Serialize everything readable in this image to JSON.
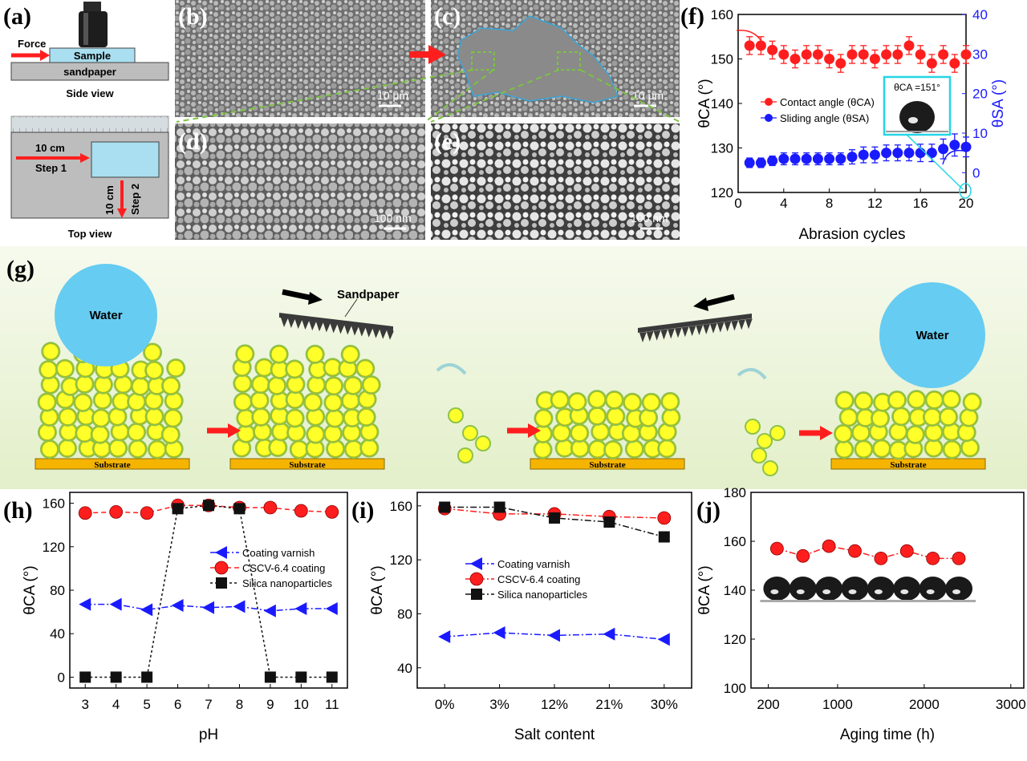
{
  "panels": {
    "a": {
      "label": "(a)",
      "force": "Force",
      "sample": "Sample",
      "sandpaper": "sandpaper",
      "side_view": "Side view",
      "dist1": "10 cm",
      "step1": "Step 1",
      "dist2": "10 cm",
      "step2": "Step 2",
      "top_view": "Top view"
    },
    "b": {
      "label": "(b)",
      "scale": "10 μm"
    },
    "c": {
      "label": "(c)",
      "scale": "10 μm"
    },
    "d": {
      "label": "(d)",
      "scale": "100 nm"
    },
    "e": {
      "label": "(e)",
      "scale": "100 nm"
    },
    "f": {
      "label": "(f)",
      "inset": "θCA =151°"
    },
    "g": {
      "label": "(g)",
      "water": "Water",
      "sandpaper": "Sandpaper",
      "substrate": "Substrate"
    },
    "h": {
      "label": "(h)"
    },
    "i": {
      "label": "(i)"
    },
    "j": {
      "label": "(j)"
    }
  },
  "colors": {
    "red": "#ff1e1e",
    "blue": "#1a1aff",
    "black": "#111111",
    "water": "#66ccf2",
    "particle": "#ffff2a",
    "binder": "#8fc24a",
    "substrate": "#f5b400",
    "bg_g": "#eef6dc"
  },
  "chart_data": [
    {
      "id": "f",
      "type": "scatter",
      "xlabel": "Abrasion cycles",
      "ylabel": "θCA (°)",
      "ylabel_right": "θSA (°)",
      "xlim": [
        0,
        20
      ],
      "ylim": [
        120,
        160
      ],
      "ylim_right": [
        -5,
        40
      ],
      "xticks": [
        0,
        4,
        8,
        12,
        16,
        20
      ],
      "yticks": [
        120,
        130,
        140,
        150,
        160
      ],
      "yticks_right": [
        0,
        10,
        20,
        30,
        40
      ],
      "x": [
        1,
        2,
        3,
        4,
        5,
        6,
        7,
        8,
        9,
        10,
        11,
        12,
        13,
        14,
        15,
        16,
        17,
        18,
        19,
        20
      ],
      "series": [
        {
          "name": "Contact angle (θCA)",
          "axis": "left",
          "color": "#ff1e1e",
          "values": [
            153,
            153,
            152,
            151,
            150,
            151,
            151,
            150,
            149,
            151,
            151,
            150,
            151,
            151,
            153,
            151,
            149,
            151,
            149,
            151
          ],
          "errors": [
            2,
            2,
            2,
            2,
            2,
            2,
            2,
            2,
            2,
            2,
            2,
            2,
            2,
            2,
            2,
            2,
            2,
            2,
            2,
            2
          ]
        },
        {
          "name": "Sliding angle (θSA)",
          "axis": "right",
          "color": "#1a1aff",
          "values": [
            2.5,
            2.5,
            3,
            3.5,
            3.5,
            3.5,
            3.5,
            3.5,
            3.5,
            4,
            4.5,
            4.5,
            5,
            5,
            5,
            5,
            5,
            6,
            7,
            6.5
          ],
          "errors": [
            1.2,
            1.2,
            1.2,
            1.5,
            1.5,
            1.5,
            1.5,
            1.5,
            1.5,
            1.8,
            2,
            2,
            2,
            2,
            2,
            2.2,
            2.2,
            2.5,
            2.8,
            2.5
          ]
        }
      ]
    },
    {
      "id": "h",
      "type": "line",
      "xlabel": "pH",
      "ylabel": "θCA (°)",
      "x": [
        3,
        4,
        5,
        6,
        7,
        8,
        9,
        10,
        11
      ],
      "ylim": [
        -10,
        170
      ],
      "yticks": [
        0,
        40,
        80,
        120,
        160
      ],
      "series": [
        {
          "name": "Coating varnish",
          "marker": "triangle-left",
          "color": "#1a1aff",
          "dash": "dash-dot",
          "values": [
            67,
            67,
            62,
            66,
            64,
            65,
            61,
            63,
            63
          ]
        },
        {
          "name": "CSCV-6.4 coating",
          "marker": "circle",
          "color": "#ff1e1e",
          "dash": "dash",
          "values": [
            151,
            152,
            151,
            158,
            158,
            156,
            156,
            153,
            152
          ]
        },
        {
          "name": "Silica nanoparticles",
          "marker": "square",
          "color": "#111111",
          "dash": "dot",
          "values": [
            0,
            0,
            0,
            155,
            158,
            155,
            0,
            0,
            0
          ]
        }
      ]
    },
    {
      "id": "i",
      "type": "line",
      "xlabel": "Salt content",
      "ylabel": "θCA (°)",
      "categories": [
        "0%",
        "3%",
        "12%",
        "21%",
        "30%"
      ],
      "ylim": [
        25,
        170
      ],
      "yticks": [
        40,
        80,
        120,
        160
      ],
      "series": [
        {
          "name": "Coating varnish",
          "marker": "triangle-left",
          "color": "#1a1aff",
          "dash": "dash-dot",
          "values": [
            63,
            66,
            64,
            65,
            61
          ]
        },
        {
          "name": "CSCV-6.4 coating",
          "marker": "circle",
          "color": "#ff1e1e",
          "dash": "dash-dot",
          "values": [
            158,
            154,
            154,
            152,
            151
          ]
        },
        {
          "name": "Silica nanoparticles",
          "marker": "square",
          "color": "#111111",
          "dash": "dash-dot",
          "values": [
            159,
            159,
            151,
            148,
            137
          ]
        }
      ]
    },
    {
      "id": "j",
      "type": "line",
      "xlabel": "Aging time (h)",
      "ylabel": "θCA (°)",
      "x": [
        300,
        600,
        900,
        1200,
        1500,
        1800,
        2100,
        2400
      ],
      "xticks": [
        200,
        1000,
        2000,
        3000
      ],
      "xtick_labels": [
        "200",
        "1000",
        "2000",
        "3000"
      ],
      "ylim": [
        100,
        180
      ],
      "yticks": [
        100,
        120,
        140,
        160,
        180
      ],
      "series": [
        {
          "name": "",
          "marker": "circle",
          "color": "#ff1e1e",
          "dash": "dash-dot",
          "values": [
            157,
            154,
            158,
            156,
            153,
            156,
            153,
            153
          ]
        }
      ]
    }
  ]
}
